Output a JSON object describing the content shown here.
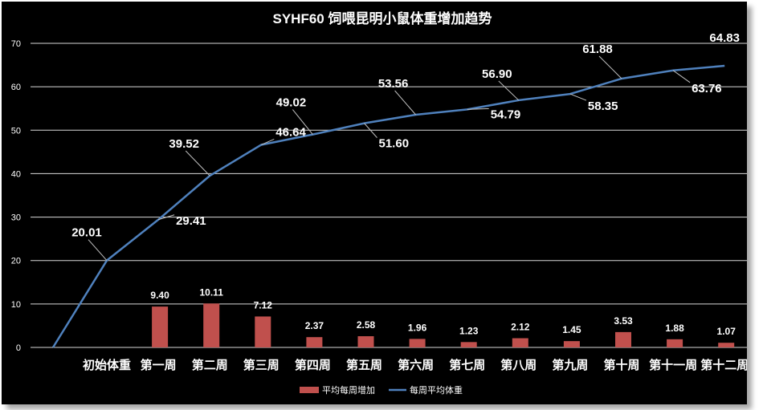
{
  "chart_data": {
    "type": "bar+line",
    "title": "SYHF60 饲喂昆明小鼠体重增加趋势",
    "categories": [
      "初始体重",
      "第一周",
      "第二周",
      "第三周",
      "第四周",
      "第五周",
      "第六周",
      "第七周",
      "第八周",
      "第九周",
      "第十周",
      "第十一周",
      "第十二周"
    ],
    "yticks": [
      "0",
      "10",
      "20",
      "30",
      "40",
      "50",
      "60",
      "70"
    ],
    "ylim": [
      0,
      70
    ],
    "grid": true,
    "legend_position": "bottom",
    "series": [
      {
        "name": "平均每周增加",
        "type": "bar",
        "color": "#c0504d",
        "values": [
          null,
          9.4,
          10.11,
          7.12,
          2.37,
          2.58,
          1.96,
          1.23,
          2.12,
          1.45,
          3.53,
          1.88,
          1.07
        ],
        "labels": [
          "",
          "9.40",
          "10.11",
          "7.12",
          "2.37",
          "2.58",
          "1.96",
          "1.23",
          "2.12",
          "1.45",
          "3.53",
          "1.88",
          "1.07"
        ]
      },
      {
        "name": "每周平均体重",
        "type": "line",
        "color": "#4f81bd",
        "start_value": 0,
        "values": [
          20.01,
          29.41,
          39.52,
          46.64,
          49.02,
          51.6,
          53.56,
          54.79,
          56.9,
          58.35,
          61.88,
          63.76,
          64.83
        ],
        "labels": [
          "20.01",
          "29.41",
          "39.52",
          "46.64",
          "49.02",
          "51.60",
          "53.56",
          "54.79",
          "56.90",
          "58.35",
          "61.88",
          "63.76",
          "64.83"
        ]
      }
    ]
  }
}
